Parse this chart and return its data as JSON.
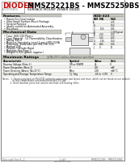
{
  "title_main": "MMSZ5221BS - MMSZ5259BS",
  "title_sub": "SURFACE MOUNT ZENER DIODE",
  "bg_color": "#ffffff",
  "features_title": "Features",
  "features": [
    "Planar Die Construction",
    "Ultra-Small Surface Mount Package",
    "General Purpose",
    "Ideally suited for Automated Assembly",
    "Processes"
  ],
  "mech_title": "Mechanical Data",
  "mech_items": [
    "Case: SOD-323 Plastic",
    "Case Material - UL Flammability Classification",
    "Rating 94V-0",
    "Moisture Sensitivity: Level 1 per J-STD-020A",
    "Terminals: Solderable per MIL-STD-202,",
    "Method 208",
    "Polarity: Cathode Band",
    "Marking: See Page 3",
    "Weight: 0.004 grams (approx.)"
  ],
  "max_ratings_title": "Maximum Ratings",
  "max_ratings_note": "@TA=25°C unless otherwise specified",
  "max_ratings_cols": [
    "Characteristic",
    "Symbol",
    "Value",
    "Unit"
  ],
  "max_ratings_rows": [
    [
      "Reverse Voltage (Note 2)",
      "VR or VRWM",
      "24",
      "V"
    ],
    [
      "Power Dissipation (Note 1)",
      "P",
      "200",
      "mW"
    ],
    [
      "Power Derating (Above TA=25°C)",
      "Pdiss",
      "2.00",
      "mW/°C"
    ],
    [
      "Operating and Storage Temperature Range",
      "TJ, Tstg",
      "-65 to +150",
      "°C"
    ]
  ],
  "footer_left": "Date code Year: 6...2",
  "footer_right": "MMSZ5221BS - MMSZ5259BS",
  "sod_title": "SOD-323",
  "sod_cols": [
    "DIM",
    "MIN",
    "MAX"
  ],
  "sod_rows": [
    [
      "A",
      "",
      "0.70"
    ],
    [
      "B",
      "",
      "0.50"
    ],
    [
      "C",
      "1.55",
      "1.85"
    ],
    [
      "D",
      "",
      "1.00 Typical"
    ],
    [
      "E",
      "2.30",
      "2.50"
    ],
    [
      "F",
      "0.10",
      "0.20"
    ],
    [
      "G",
      "1.30",
      "1.50"
    ],
    [
      "H",
      "0.80",
      "1.00"
    ],
    [
      "J",
      "0",
      "10"
    ]
  ],
  "notes_line1": "Notes:  1. Device mounted on FR-4 PCB substrate and copper pad layout and trace, which can be found on our website",
  "notes_line2": "              at http://www.diodes.com/datasheets/ap02001.pdf.",
  "notes_line3": "           2. Short duration pulse test used to minimize self-heating effect."
}
